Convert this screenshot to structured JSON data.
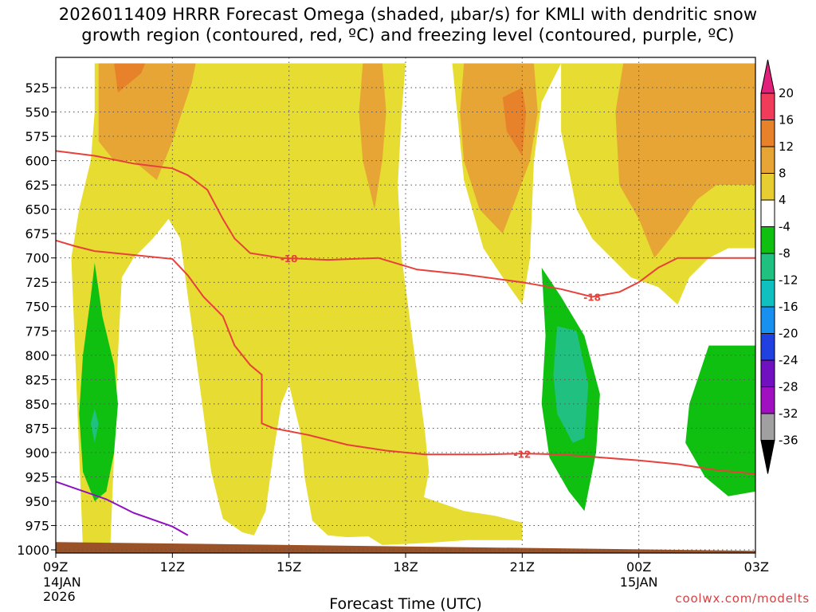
{
  "chart_data": {
    "type": "area",
    "title_line1": "2026011409 HRRR Forecast Omega (shaded, μbar/s) for KMLI with dendritic snow",
    "title_line2": "growth region (contoured, red, ºC) and freezing level (contoured, purple, ºC)",
    "xlabel": "Forecast Time (UTC)",
    "credit": "coolwx.com/modelts",
    "x_range_hours": [
      0,
      18
    ],
    "y_range_mb": [
      1000,
      500
    ],
    "x_ticks": [
      {
        "h": 0,
        "label": "09Z",
        "sub1": "14JAN",
        "sub2": "2026"
      },
      {
        "h": 3,
        "label": "12Z",
        "sub1": "",
        "sub2": ""
      },
      {
        "h": 6,
        "label": "15Z",
        "sub1": "",
        "sub2": ""
      },
      {
        "h": 9,
        "label": "18Z",
        "sub1": "",
        "sub2": ""
      },
      {
        "h": 12,
        "label": "21Z",
        "sub1": "",
        "sub2": ""
      },
      {
        "h": 15,
        "label": "00Z",
        "sub1": "15JAN",
        "sub2": ""
      },
      {
        "h": 18,
        "label": "03Z",
        "sub1": "",
        "sub2": ""
      }
    ],
    "y_ticks": [
      {
        "p": 525,
        "label": "525"
      },
      {
        "p": 550,
        "label": "550"
      },
      {
        "p": 575,
        "label": "575"
      },
      {
        "p": 600,
        "label": "600"
      },
      {
        "p": 625,
        "label": "625"
      },
      {
        "p": 650,
        "label": "650"
      },
      {
        "p": 675,
        "label": "675"
      },
      {
        "p": 700,
        "label": "700"
      },
      {
        "p": 725,
        "label": "725"
      },
      {
        "p": 750,
        "label": "750"
      },
      {
        "p": 775,
        "label": "775"
      },
      {
        "p": 800,
        "label": "800"
      },
      {
        "p": 825,
        "label": "825"
      },
      {
        "p": 850,
        "label": "850"
      },
      {
        "p": 875,
        "label": "875"
      },
      {
        "p": 900,
        "label": "900"
      },
      {
        "p": 925,
        "label": "925"
      },
      {
        "p": 950,
        "label": "950"
      },
      {
        "p": 975,
        "label": "975"
      },
      {
        "p": 1000,
        "label": "1000"
      }
    ],
    "colorbar": {
      "labels": [
        "20",
        "16",
        "12",
        "8",
        "4",
        "-4",
        "-8",
        "-12",
        "-16",
        "-20",
        "-24",
        "-28",
        "-32",
        "-36"
      ],
      "colors": [
        "#f03c5a",
        "#e8822a",
        "#e6a534",
        "#e6cd32",
        "#ffffff",
        "#10c010",
        "#20c080",
        "#10c0c0",
        "#1890f0",
        "#2040e0",
        "#7010c0",
        "#a010c0",
        "#a0a0a0"
      ],
      "top_arrow_color": "#e0207a",
      "bottom_arrow_color": "#000000"
    },
    "omega_regions": [
      {
        "name": "plus-4-to-8-left",
        "color": "#e6dc32",
        "points": [
          [
            0.7,
            1000
          ],
          [
            0.6,
            900
          ],
          [
            0.5,
            800
          ],
          [
            0.4,
            700
          ],
          [
            0.6,
            650
          ],
          [
            0.9,
            600
          ],
          [
            1.0,
            550
          ],
          [
            1.0,
            500
          ],
          [
            9.0,
            500
          ],
          [
            8.9,
            550
          ],
          [
            8.8,
            625
          ],
          [
            8.9,
            700
          ],
          [
            9.1,
            760
          ],
          [
            9.3,
            820
          ],
          [
            9.5,
            880
          ],
          [
            9.6,
            920
          ],
          [
            9.4,
            960
          ],
          [
            8.8,
            985
          ],
          [
            7.5,
            987
          ],
          [
            7.0,
            985
          ],
          [
            6.6,
            970
          ],
          [
            6.4,
            925
          ],
          [
            6.3,
            880
          ],
          [
            6.0,
            830
          ],
          [
            5.8,
            850
          ],
          [
            5.6,
            900
          ],
          [
            5.4,
            960
          ],
          [
            5.1,
            985
          ],
          [
            4.8,
            982
          ],
          [
            4.3,
            968
          ],
          [
            4.0,
            920
          ],
          [
            3.6,
            800
          ],
          [
            3.2,
            680
          ],
          [
            2.9,
            660
          ],
          [
            2.5,
            680
          ],
          [
            2.0,
            700
          ],
          [
            1.7,
            720
          ],
          [
            1.6,
            800
          ],
          [
            1.5,
            900
          ],
          [
            1.4,
            1000
          ]
        ]
      },
      {
        "name": "plus-4-to-8-right",
        "color": "#e6dc32",
        "points": [
          [
            10.2,
            500
          ],
          [
            10.5,
            620
          ],
          [
            11.0,
            690
          ],
          [
            11.5,
            720
          ],
          [
            12.0,
            748
          ],
          [
            12.2,
            700
          ],
          [
            12.3,
            600
          ],
          [
            12.5,
            540
          ],
          [
            13.0,
            500
          ],
          [
            13.0,
            570
          ],
          [
            13.4,
            650
          ],
          [
            13.8,
            680
          ],
          [
            14.3,
            700
          ],
          [
            14.8,
            720
          ],
          [
            15.5,
            730
          ],
          [
            16.0,
            748
          ],
          [
            16.3,
            720
          ],
          [
            16.8,
            700
          ],
          [
            17.3,
            690
          ],
          [
            18.0,
            690
          ],
          [
            18.0,
            500
          ]
        ]
      },
      {
        "name": "plus-4-to-8-lower-blob",
        "color": "#e6dc32",
        "points": [
          [
            8.0,
            985
          ],
          [
            8.4,
            955
          ],
          [
            9.0,
            930
          ],
          [
            9.4,
            945
          ],
          [
            10.5,
            960
          ],
          [
            11.3,
            965
          ],
          [
            12.0,
            972
          ],
          [
            12.0,
            990
          ],
          [
            10.6,
            990
          ],
          [
            9.5,
            993
          ],
          [
            8.4,
            995
          ]
        ]
      },
      {
        "name": "plus-8-to-12-left",
        "color": "#e6a534",
        "points": [
          [
            1.1,
            500
          ],
          [
            1.1,
            580
          ],
          [
            1.5,
            600
          ],
          [
            2.0,
            600
          ],
          [
            2.6,
            620
          ],
          [
            3.0,
            580
          ],
          [
            3.5,
            520
          ],
          [
            3.6,
            500
          ]
        ]
      },
      {
        "name": "plus-8-to-12-mid",
        "color": "#e6a534",
        "points": [
          [
            7.9,
            500
          ],
          [
            7.8,
            550
          ],
          [
            7.9,
            600
          ],
          [
            8.2,
            650
          ],
          [
            8.4,
            600
          ],
          [
            8.5,
            550
          ],
          [
            8.4,
            500
          ]
        ]
      },
      {
        "name": "plus-8-to-12-right1",
        "color": "#e6a534",
        "points": [
          [
            10.5,
            500
          ],
          [
            10.4,
            550
          ],
          [
            10.5,
            600
          ],
          [
            10.9,
            650
          ],
          [
            11.5,
            675
          ],
          [
            12.2,
            600
          ],
          [
            12.4,
            550
          ],
          [
            12.3,
            500
          ]
        ]
      },
      {
        "name": "plus-8-to-12-right2",
        "color": "#e6a534",
        "points": [
          [
            14.6,
            500
          ],
          [
            14.4,
            550
          ],
          [
            14.5,
            625
          ],
          [
            15.0,
            660
          ],
          [
            15.4,
            700
          ],
          [
            16.0,
            670
          ],
          [
            16.5,
            640
          ],
          [
            17.0,
            625
          ],
          [
            18.0,
            625
          ],
          [
            18.0,
            500
          ]
        ]
      },
      {
        "name": "plus-12-to-16-left",
        "color": "#e8822a",
        "points": [
          [
            1.5,
            500
          ],
          [
            1.6,
            530
          ],
          [
            2.2,
            510
          ],
          [
            2.3,
            500
          ]
        ]
      },
      {
        "name": "plus-12-to-16-right",
        "color": "#e8822a",
        "points": [
          [
            11.5,
            535
          ],
          [
            11.6,
            570
          ],
          [
            12.0,
            595
          ],
          [
            12.1,
            550
          ],
          [
            12.0,
            525
          ]
        ]
      },
      {
        "name": "minus-4-to-8-left",
        "color": "#10c010",
        "points": [
          [
            1.0,
            705
          ],
          [
            1.2,
            760
          ],
          [
            1.5,
            810
          ],
          [
            1.6,
            850
          ],
          [
            1.5,
            900
          ],
          [
            1.3,
            940
          ],
          [
            1.0,
            950
          ],
          [
            0.7,
            920
          ],
          [
            0.6,
            860
          ],
          [
            0.7,
            800
          ],
          [
            0.9,
            740
          ]
        ]
      },
      {
        "name": "minus-4-to-8-mid",
        "color": "#10c010",
        "points": [
          [
            12.5,
            710
          ],
          [
            13.0,
            740
          ],
          [
            13.6,
            780
          ],
          [
            14.0,
            840
          ],
          [
            13.9,
            900
          ],
          [
            13.6,
            960
          ],
          [
            13.2,
            940
          ],
          [
            12.7,
            905
          ],
          [
            12.5,
            850
          ],
          [
            12.6,
            780
          ]
        ]
      },
      {
        "name": "minus-4-to-8-right",
        "color": "#10c010",
        "points": [
          [
            16.8,
            790
          ],
          [
            18.0,
            790
          ],
          [
            18.0,
            940
          ],
          [
            17.3,
            945
          ],
          [
            16.7,
            925
          ],
          [
            16.2,
            890
          ],
          [
            16.3,
            850
          ]
        ]
      },
      {
        "name": "minus-8-to-12-left",
        "color": "#20c080",
        "points": [
          [
            1.0,
            855
          ],
          [
            1.1,
            870
          ],
          [
            1.0,
            890
          ],
          [
            0.9,
            870
          ]
        ]
      },
      {
        "name": "minus-8-to-12-mid",
        "color": "#20c080",
        "points": [
          [
            12.9,
            770
          ],
          [
            13.4,
            775
          ],
          [
            13.7,
            830
          ],
          [
            13.6,
            885
          ],
          [
            13.3,
            890
          ],
          [
            12.9,
            860
          ],
          [
            12.8,
            820
          ]
        ]
      }
    ],
    "ground": {
      "color": "#9a5228",
      "left_p": 992,
      "right_p": 1001
    },
    "dendritic_contours": [
      {
        "name": "minus-18-isotherm",
        "color": "#e8403a",
        "label": "-18",
        "label_at": [
          6.0,
          701
        ],
        "label_at2": [
          13.8,
          741
        ],
        "points": [
          [
            0.0,
            590
          ],
          [
            1.0,
            595
          ],
          [
            2.0,
            603
          ],
          [
            3.0,
            608
          ],
          [
            3.4,
            615
          ],
          [
            3.9,
            630
          ],
          [
            4.3,
            660
          ],
          [
            4.6,
            680
          ],
          [
            5.0,
            695
          ],
          [
            5.8,
            700
          ],
          [
            7.0,
            702
          ],
          [
            8.3,
            700
          ],
          [
            9.3,
            712
          ],
          [
            10.5,
            717
          ],
          [
            12.0,
            725
          ],
          [
            13.0,
            732
          ],
          [
            13.8,
            740
          ],
          [
            14.5,
            735
          ],
          [
            15.0,
            725
          ],
          [
            15.5,
            710
          ],
          [
            16.0,
            700
          ],
          [
            16.5,
            700
          ],
          [
            18.0,
            700
          ]
        ]
      },
      {
        "name": "minus-12-isotherm",
        "color": "#e8403a",
        "label": "-12",
        "label_at": [
          12.0,
          902
        ],
        "points": [
          [
            0.0,
            682
          ],
          [
            0.5,
            688
          ],
          [
            1.0,
            693
          ],
          [
            2.0,
            697
          ],
          [
            3.0,
            701
          ],
          [
            3.4,
            718
          ],
          [
            3.8,
            740
          ],
          [
            4.3,
            760
          ],
          [
            4.6,
            790
          ],
          [
            5.0,
            810
          ],
          [
            5.3,
            820
          ],
          [
            5.3,
            870
          ],
          [
            5.6,
            875
          ],
          [
            6.5,
            882
          ],
          [
            7.5,
            892
          ],
          [
            8.5,
            898
          ],
          [
            9.5,
            902
          ],
          [
            11.0,
            902
          ],
          [
            12.0,
            901
          ],
          [
            13.0,
            902
          ],
          [
            14.0,
            905
          ],
          [
            15.0,
            908
          ],
          [
            16.0,
            912
          ],
          [
            17.0,
            918
          ],
          [
            18.0,
            922
          ]
        ]
      }
    ],
    "freezing_contours": [
      {
        "name": "zero-isotherm",
        "color": "#9010c0",
        "points": [
          [
            0.0,
            930
          ],
          [
            1.3,
            948
          ],
          [
            2.0,
            962
          ],
          [
            3.0,
            976
          ],
          [
            3.4,
            985
          ]
        ]
      }
    ]
  }
}
